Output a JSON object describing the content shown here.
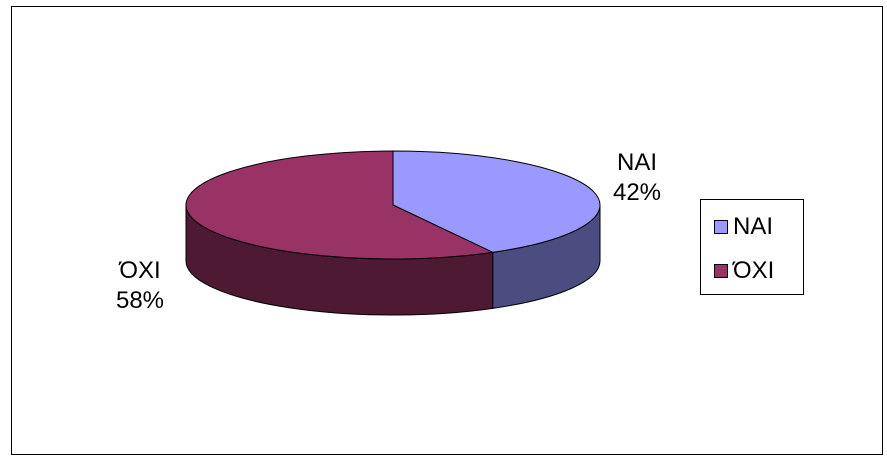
{
  "chart_data": {
    "type": "pie",
    "style": "3d",
    "categories": [
      "ΝΑΙ",
      "ΌΧΙ"
    ],
    "values": [
      42,
      58
    ],
    "data_labels": [
      "42%",
      "58%"
    ],
    "colors": [
      "#9999ff",
      "#993366"
    ],
    "side_colors": [
      "#4b4c80",
      "#4d1933"
    ],
    "legend": {
      "position": "right",
      "entries": [
        "ΝΑΙ",
        "ΌΧΙ"
      ]
    }
  }
}
